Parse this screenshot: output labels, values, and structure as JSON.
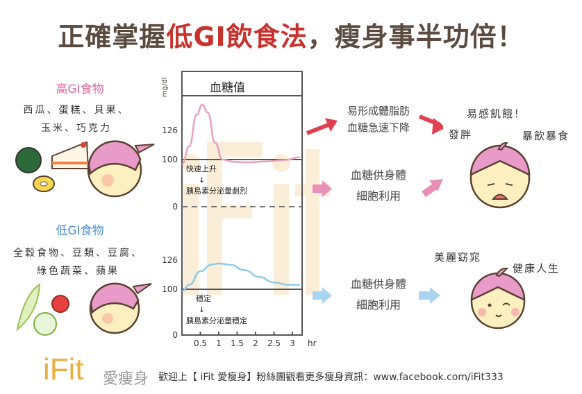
{
  "title": {
    "part1": "正確掌握",
    "part2": "低GI飲食法",
    "part3": "，瘦身事半功倍！"
  },
  "high_gi": {
    "heading": "高GI食物",
    "foods_line1": "西瓜、蛋糕、貝果、",
    "foods_line2": "玉米、巧克力",
    "color": "#e06aa0"
  },
  "low_gi": {
    "heading": "低GI食物",
    "foods_line1": "全穀食物、豆類、豆腐、",
    "foods_line2": "綠色蔬菜、蘋果",
    "color": "#4a8fd0"
  },
  "chart_data": {
    "type": "line",
    "title": "血糖值",
    "ylabel": "mg/dl",
    "xlabel": "hr",
    "x_ticks": [
      "0.5",
      "1",
      "1.5",
      "2",
      "2.5",
      "3"
    ],
    "y_ticks_top": [
      "0",
      "100",
      "126"
    ],
    "y_ticks_bottom": [
      "0",
      "100",
      "126"
    ],
    "series": [
      {
        "panel": "top",
        "color": "#eaa0c0",
        "x": [
          0,
          0.2,
          0.4,
          0.55,
          0.7,
          0.9,
          1.1,
          1.4,
          1.8,
          2.3,
          2.8,
          3.2
        ],
        "y": [
          90,
          112,
          140,
          149,
          142,
          115,
          100,
          95,
          94,
          96,
          99,
          102
        ]
      },
      {
        "panel": "bottom",
        "color": "#8ccbe8",
        "x": [
          0,
          0.2,
          0.5,
          0.8,
          1.0,
          1.3,
          1.7,
          2.1,
          2.5,
          2.9,
          3.2
        ],
        "y": [
          96,
          104,
          116,
          122,
          123,
          122,
          117,
          111,
          106,
          104,
          104
        ]
      }
    ],
    "annotations_top": {
      "line1": "快速上升",
      "arrow": "↓",
      "line2": "胰島素分泌量劇烈"
    },
    "annotations_bottom": {
      "line1": "穩定",
      "arrow": "↓",
      "line2": "胰島素分泌量穩定"
    }
  },
  "flow_high": {
    "text1": "易形成體脂肪",
    "text2": "血糖急速下降",
    "arrow_color": "#e0404f"
  },
  "flow_high_mid": {
    "text1": "血糖供身體",
    "text2": "細胞利用",
    "arrow_color": "#e890b8"
  },
  "flow_low": {
    "text1": "血糖供身體",
    "text2": "細胞利用",
    "arrow_color": "#a8d4f0"
  },
  "outcome_bad": {
    "t1": "易感飢餓！",
    "t2": "發胖",
    "t3": "暴飲暴食"
  },
  "outcome_good": {
    "t1": "美麗窈窕",
    "t2": "健康人生"
  },
  "footer": {
    "logo": "iFit",
    "logo_sub": "愛瘦身",
    "text": "歡迎上【 iFit  愛瘦身】粉絲團觀看更多瘦身資訊：www.facebook.com/iFit333"
  }
}
